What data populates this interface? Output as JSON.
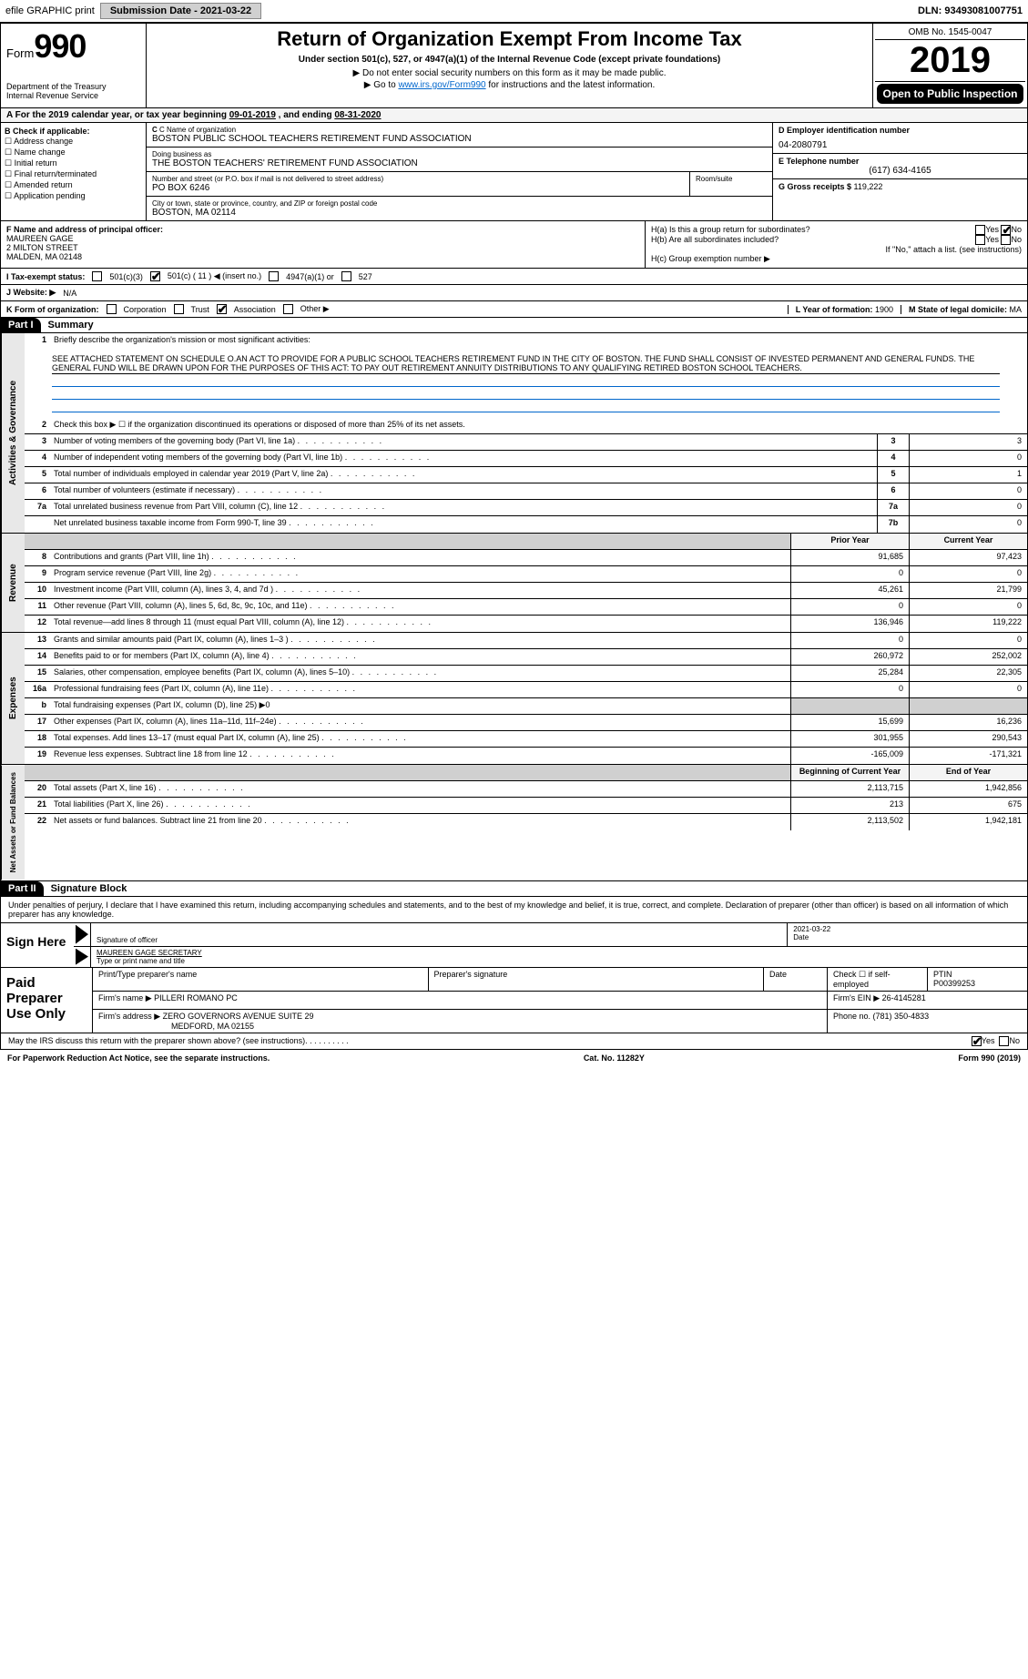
{
  "topbar": {
    "efile_label": "efile GRAPHIC print",
    "submission_label": "Submission Date - 2021-03-22",
    "dln_label": "DLN: 93493081007751"
  },
  "header": {
    "form_label": "Form",
    "form_number": "990",
    "title": "Return of Organization Exempt From Income Tax",
    "subtitle": "Under section 501(c), 527, or 4947(a)(1) of the Internal Revenue Code (except private foundations)",
    "note1": "▶ Do not enter social security numbers on this form as it may be made public.",
    "note2_pre": "▶ Go to ",
    "note2_link": "www.irs.gov/Form990",
    "note2_post": " for instructions and the latest information.",
    "dept": "Department of the Treasury\nInternal Revenue Service",
    "omb": "OMB No. 1545-0047",
    "year": "2019",
    "open_public": "Open to Public Inspection"
  },
  "period": {
    "label_a": "A For the 2019 calendar year, or tax year beginning ",
    "begin": "09-01-2019",
    "mid": " , and ending ",
    "end": "08-31-2020"
  },
  "section_b": {
    "header": "B Check if applicable:",
    "items": [
      "Address change",
      "Name change",
      "Initial return",
      "Final return/terminated",
      "Amended return",
      "Application pending"
    ]
  },
  "section_c": {
    "name_lbl": "C Name of organization",
    "name": "BOSTON PUBLIC SCHOOL TEACHERS RETIREMENT FUND ASSOCIATION",
    "dba_lbl": "Doing business as",
    "dba": "THE BOSTON TEACHERS' RETIREMENT FUND ASSOCIATION",
    "addr_lbl": "Number and street (or P.O. box if mail is not delivered to street address)",
    "room_lbl": "Room/suite",
    "addr": "PO BOX 6246",
    "city_lbl": "City or town, state or province, country, and ZIP or foreign postal code",
    "city": "BOSTON, MA  02114"
  },
  "section_d": {
    "lbl": "D Employer identification number",
    "val": "04-2080791"
  },
  "section_e": {
    "lbl": "E Telephone number",
    "val": "(617) 634-4165"
  },
  "section_g": {
    "lbl": "G Gross receipts $ ",
    "val": "119,222"
  },
  "section_f": {
    "lbl": "F Name and address of principal officer:",
    "name": "MAUREEN GAGE",
    "addr1": "2 MILTON STREET",
    "addr2": "MALDEN, MA  02148"
  },
  "section_h": {
    "ha_lbl": "H(a)  Is this a group return for subordinates?",
    "hb_lbl": "H(b)  Are all subordinates included?",
    "hb_note": "If \"No,\" attach a list. (see instructions)",
    "hc_lbl": "H(c)  Group exemption number ▶",
    "yes": "Yes",
    "no": "No"
  },
  "section_i": {
    "lbl": "I   Tax-exempt status:",
    "opt1": "501(c)(3)",
    "opt2": "501(c) ( 11 ) ◀ (insert no.)",
    "opt3": "4947(a)(1) or",
    "opt4": "527"
  },
  "section_j": {
    "lbl": "J   Website: ▶",
    "val": "N/A"
  },
  "section_k": {
    "lbl": "K Form of organization:",
    "opts": [
      "Corporation",
      "Trust",
      "Association",
      "Other ▶"
    ]
  },
  "section_l": {
    "lbl": "L Year of formation: ",
    "val": "1900"
  },
  "section_m": {
    "lbl": "M State of legal domicile: ",
    "val": "MA"
  },
  "part1": {
    "hdr": "Part I",
    "title": "Summary",
    "line1_lbl": "Briefly describe the organization's mission or most significant activities:",
    "mission": "SEE ATTACHED STATEMENT ON SCHEDULE O.AN ACT TO PROVIDE FOR A PUBLIC SCHOOL TEACHERS RETIREMENT FUND IN THE CITY OF BOSTON. THE FUND SHALL CONSIST OF INVESTED PERMANENT AND GENERAL FUNDS. THE GENERAL FUND WILL BE DRAWN UPON FOR THE PURPOSES OF THIS ACT: TO PAY OUT RETIREMENT ANNUITY DISTRIBUTIONS TO ANY QUALIFYING RETIRED BOSTON SCHOOL TEACHERS.",
    "line2": "Check this box ▶ ☐ if the organization discontinued its operations or disposed of more than 25% of its net assets.",
    "prior_year": "Prior Year",
    "current_year": "Current Year",
    "beg_year": "Beginning of Current Year",
    "end_year": "End of Year",
    "vert_gov": "Activities & Governance",
    "vert_rev": "Revenue",
    "vert_exp": "Expenses",
    "vert_net": "Net Assets or Fund Balances",
    "lines_gov": [
      {
        "n": "3",
        "d": "Number of voting members of the governing body (Part VI, line 1a)",
        "sn": "3",
        "v": "3"
      },
      {
        "n": "4",
        "d": "Number of independent voting members of the governing body (Part VI, line 1b)",
        "sn": "4",
        "v": "0"
      },
      {
        "n": "5",
        "d": "Total number of individuals employed in calendar year 2019 (Part V, line 2a)",
        "sn": "5",
        "v": "1"
      },
      {
        "n": "6",
        "d": "Total number of volunteers (estimate if necessary)",
        "sn": "6",
        "v": "0"
      },
      {
        "n": "7a",
        "d": "Total unrelated business revenue from Part VIII, column (C), line 12",
        "sn": "7a",
        "v": "0"
      },
      {
        "n": "",
        "d": "Net unrelated business taxable income from Form 990-T, line 39",
        "sn": "7b",
        "v": "0"
      }
    ],
    "lines_rev": [
      {
        "n": "8",
        "d": "Contributions and grants (Part VIII, line 1h)",
        "py": "91,685",
        "cy": "97,423"
      },
      {
        "n": "9",
        "d": "Program service revenue (Part VIII, line 2g)",
        "py": "0",
        "cy": "0"
      },
      {
        "n": "10",
        "d": "Investment income (Part VIII, column (A), lines 3, 4, and 7d )",
        "py": "45,261",
        "cy": "21,799"
      },
      {
        "n": "11",
        "d": "Other revenue (Part VIII, column (A), lines 5, 6d, 8c, 9c, 10c, and 11e)",
        "py": "0",
        "cy": "0"
      },
      {
        "n": "12",
        "d": "Total revenue—add lines 8 through 11 (must equal Part VIII, column (A), line 12)",
        "py": "136,946",
        "cy": "119,222"
      }
    ],
    "lines_exp": [
      {
        "n": "13",
        "d": "Grants and similar amounts paid (Part IX, column (A), lines 1–3 )",
        "py": "0",
        "cy": "0"
      },
      {
        "n": "14",
        "d": "Benefits paid to or for members (Part IX, column (A), line 4)",
        "py": "260,972",
        "cy": "252,002"
      },
      {
        "n": "15",
        "d": "Salaries, other compensation, employee benefits (Part IX, column (A), lines 5–10)",
        "py": "25,284",
        "cy": "22,305"
      },
      {
        "n": "16a",
        "d": "Professional fundraising fees (Part IX, column (A), line 11e)",
        "py": "0",
        "cy": "0"
      },
      {
        "n": "b",
        "d": "Total fundraising expenses (Part IX, column (D), line 25) ▶0",
        "py": "",
        "cy": "",
        "grey": true
      },
      {
        "n": "17",
        "d": "Other expenses (Part IX, column (A), lines 11a–11d, 11f–24e)",
        "py": "15,699",
        "cy": "16,236"
      },
      {
        "n": "18",
        "d": "Total expenses. Add lines 13–17 (must equal Part IX, column (A), line 25)",
        "py": "301,955",
        "cy": "290,543"
      },
      {
        "n": "19",
        "d": "Revenue less expenses. Subtract line 18 from line 12",
        "py": "-165,009",
        "cy": "-171,321"
      }
    ],
    "lines_net": [
      {
        "n": "20",
        "d": "Total assets (Part X, line 16)",
        "py": "2,113,715",
        "cy": "1,942,856"
      },
      {
        "n": "21",
        "d": "Total liabilities (Part X, line 26)",
        "py": "213",
        "cy": "675"
      },
      {
        "n": "22",
        "d": "Net assets or fund balances. Subtract line 21 from line 20",
        "py": "2,113,502",
        "cy": "1,942,181"
      }
    ]
  },
  "part2": {
    "hdr": "Part II",
    "title": "Signature Block",
    "decl": "Under penalties of perjury, I declare that I have examined this return, including accompanying schedules and statements, and to the best of my knowledge and belief, it is true, correct, and complete. Declaration of preparer (other than officer) is based on all information of which preparer has any knowledge.",
    "sign_here": "Sign Here",
    "sig_officer_lbl": "Signature of officer",
    "sig_date": "2021-03-22",
    "date_lbl": "Date",
    "officer_name": "MAUREEN GAGE SECRETARY",
    "officer_type_lbl": "Type or print name and title",
    "paid_prep": "Paid Preparer Use Only",
    "prep_name_lbl": "Print/Type preparer's name",
    "prep_sig_lbl": "Preparer's signature",
    "prep_date_lbl": "Date",
    "prep_check_lbl": "Check ☐ if self-employed",
    "ptin_lbl": "PTIN",
    "ptin": "P00399253",
    "firm_name_lbl": "Firm's name    ▶",
    "firm_name": "PILLERI ROMANO PC",
    "firm_ein_lbl": "Firm's EIN ▶",
    "firm_ein": "26-4145281",
    "firm_addr_lbl": "Firm's address ▶",
    "firm_addr1": "ZERO GOVERNORS AVENUE SUITE 29",
    "firm_addr2": "MEDFORD, MA  02155",
    "phone_lbl": "Phone no. ",
    "phone": "(781) 350-4833",
    "discuss": "May the IRS discuss this return with the preparer shown above? (see instructions)",
    "yes": "Yes",
    "no": "No"
  },
  "footer": {
    "pra": "For Paperwork Reduction Act Notice, see the separate instructions.",
    "cat": "Cat. No. 11282Y",
    "form": "Form 990 (2019)"
  },
  "style": {
    "link_color": "#0066cc",
    "black": "#000000",
    "grey_bg": "#d0d0d0",
    "light_bg": "#f4f4f4"
  }
}
